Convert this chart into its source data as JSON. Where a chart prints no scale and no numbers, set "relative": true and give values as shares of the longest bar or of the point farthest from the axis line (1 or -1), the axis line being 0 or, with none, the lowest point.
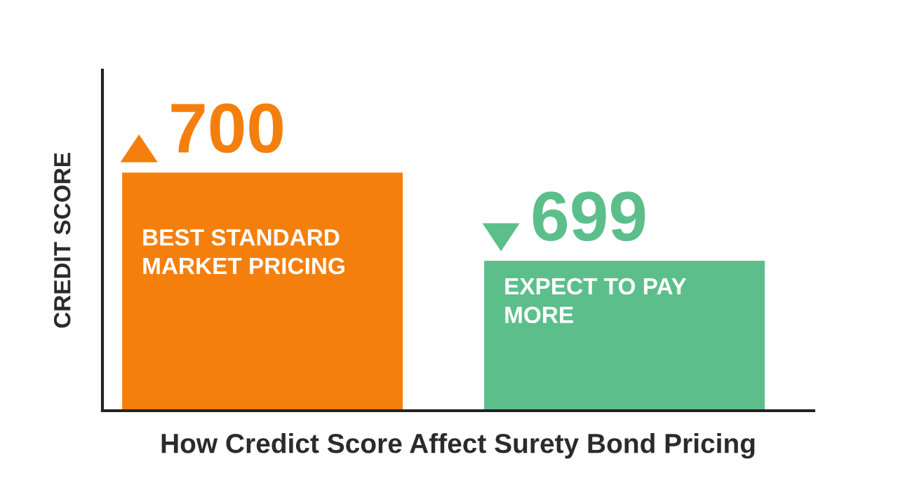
{
  "chart_data": {
    "type": "bar",
    "relative": true,
    "categories": [
      null,
      null
    ],
    "values": [
      1,
      0.63
    ],
    "colors": [
      "#f57f0c",
      "#5cbf8b"
    ],
    "xlabel": "How Credict Score Affect Surety Bond Pricing",
    "ylabel": "CREDIT SCORE",
    "annotations": [
      "700",
      "BEST STANDARD\nMARKET PRICING",
      "699",
      "EXPECT TO PAY\nMORE"
    ]
  }
}
